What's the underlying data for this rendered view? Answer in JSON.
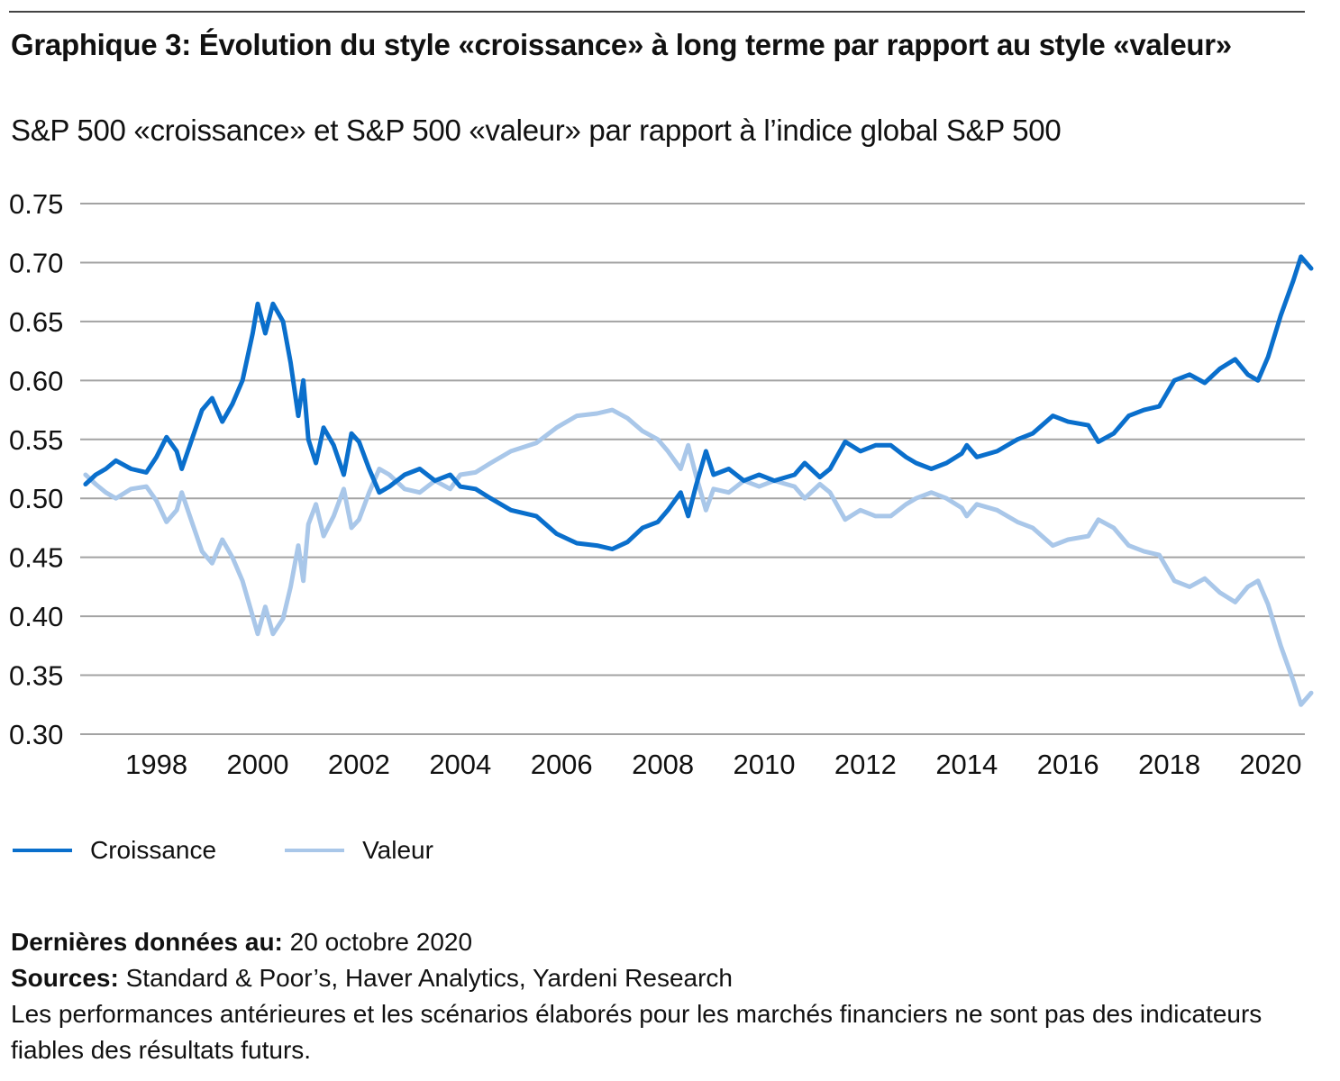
{
  "header": {
    "title": "Graphique 3: Évolution du style «croissance» à long terme par rapport au style «valeur»",
    "subtitle": "S&P 500 «croissance» et S&P 500 «valeur» par rapport à l’indice global S&P 500"
  },
  "legend": {
    "items": [
      {
        "label": "Croissance",
        "color": "#0a6fcc"
      },
      {
        "label": "Valeur",
        "color": "#a9c7e9"
      }
    ]
  },
  "footer": {
    "last_data_label": "Dernières données au:",
    "last_data_value": " 20 octobre 2020",
    "sources_label": "Sources:",
    "sources_value": " Standard & Poor’s, Haver Analytics, Yardeni Research",
    "disclaimer": "Les performances antérieures et les scénarios élaborés pour les marchés financiers ne sont pas des indicateurs fiables des résultats futurs."
  },
  "chart_data": {
    "type": "line",
    "title": "Graphique 3: Évolution du style «croissance» à long terme par rapport au style «valeur»",
    "subtitle": "S&P 500 «croissance» et S&P 500 «valeur» par rapport à l’indice global S&P 500",
    "xlabel": "",
    "ylabel": "",
    "ylim": [
      0.3,
      0.75
    ],
    "xlim": [
      1996.6,
      2020.8
    ],
    "yticks": [
      "0.75",
      "0.70",
      "0.65",
      "0.60",
      "0.55",
      "0.50",
      "0.45",
      "0.40",
      "0.35",
      "0.30"
    ],
    "xticks": [
      "1998",
      "2000",
      "2002",
      "2004",
      "2006",
      "2008",
      "2010",
      "2012",
      "2014",
      "2016",
      "2018",
      "2020"
    ],
    "grid": true,
    "legend_position": "bottom-left",
    "series": [
      {
        "name": "Croissance",
        "color": "#0a6fcc",
        "x": [
          1996.6,
          1996.8,
          1997.0,
          1997.2,
          1997.5,
          1997.8,
          1998.0,
          1998.2,
          1998.4,
          1998.5,
          1998.7,
          1998.9,
          1999.1,
          1999.3,
          1999.5,
          1999.7,
          1999.9,
          2000.0,
          2000.15,
          2000.3,
          2000.5,
          2000.65,
          2000.8,
          2000.9,
          2001.0,
          2001.15,
          2001.3,
          2001.5,
          2001.7,
          2001.85,
          2002.0,
          2002.2,
          2002.4,
          2002.6,
          2002.9,
          2003.2,
          2003.5,
          2003.8,
          2004.0,
          2004.3,
          2004.6,
          2005.0,
          2005.5,
          2005.9,
          2006.3,
          2006.7,
          2007.0,
          2007.3,
          2007.6,
          2007.9,
          2008.1,
          2008.35,
          2008.5,
          2008.65,
          2008.85,
          2009.0,
          2009.3,
          2009.6,
          2009.9,
          2010.2,
          2010.6,
          2010.8,
          2011.1,
          2011.3,
          2011.6,
          2011.9,
          2012.2,
          2012.5,
          2012.8,
          2013.0,
          2013.3,
          2013.6,
          2013.9,
          2014.0,
          2014.2,
          2014.6,
          2015.0,
          2015.3,
          2015.7,
          2016.0,
          2016.4,
          2016.6,
          2016.9,
          2017.2,
          2017.5,
          2017.8,
          2018.1,
          2018.4,
          2018.7,
          2019.0,
          2019.3,
          2019.55,
          2019.75,
          2019.95,
          2020.2,
          2020.45,
          2020.6,
          2020.8
        ],
        "values": [
          0.512,
          0.52,
          0.525,
          0.532,
          0.525,
          0.522,
          0.535,
          0.552,
          0.54,
          0.525,
          0.55,
          0.575,
          0.585,
          0.565,
          0.58,
          0.6,
          0.64,
          0.665,
          0.64,
          0.665,
          0.65,
          0.615,
          0.57,
          0.6,
          0.55,
          0.53,
          0.56,
          0.545,
          0.52,
          0.555,
          0.548,
          0.525,
          0.505,
          0.51,
          0.52,
          0.525,
          0.515,
          0.52,
          0.51,
          0.508,
          0.5,
          0.49,
          0.485,
          0.47,
          0.462,
          0.46,
          0.457,
          0.463,
          0.475,
          0.48,
          0.49,
          0.505,
          0.485,
          0.51,
          0.54,
          0.52,
          0.525,
          0.515,
          0.52,
          0.515,
          0.52,
          0.53,
          0.518,
          0.525,
          0.548,
          0.54,
          0.545,
          0.545,
          0.535,
          0.53,
          0.525,
          0.53,
          0.538,
          0.545,
          0.535,
          0.54,
          0.55,
          0.555,
          0.57,
          0.565,
          0.562,
          0.548,
          0.555,
          0.57,
          0.575,
          0.578,
          0.6,
          0.605,
          0.598,
          0.61,
          0.618,
          0.605,
          0.6,
          0.62,
          0.655,
          0.685,
          0.705,
          0.695
        ]
      },
      {
        "name": "Valeur",
        "color": "#a9c7e9",
        "x": [
          1996.6,
          1996.8,
          1997.0,
          1997.2,
          1997.5,
          1997.8,
          1998.0,
          1998.2,
          1998.4,
          1998.5,
          1998.7,
          1998.9,
          1999.1,
          1999.3,
          1999.5,
          1999.7,
          1999.9,
          2000.0,
          2000.15,
          2000.3,
          2000.5,
          2000.65,
          2000.8,
          2000.9,
          2001.0,
          2001.15,
          2001.3,
          2001.5,
          2001.7,
          2001.85,
          2002.0,
          2002.2,
          2002.4,
          2002.6,
          2002.9,
          2003.2,
          2003.5,
          2003.8,
          2004.0,
          2004.3,
          2004.6,
          2005.0,
          2005.5,
          2005.9,
          2006.3,
          2006.7,
          2007.0,
          2007.3,
          2007.6,
          2007.9,
          2008.1,
          2008.35,
          2008.5,
          2008.65,
          2008.85,
          2009.0,
          2009.3,
          2009.6,
          2009.9,
          2010.2,
          2010.6,
          2010.8,
          2011.1,
          2011.3,
          2011.6,
          2011.9,
          2012.2,
          2012.5,
          2012.8,
          2013.0,
          2013.3,
          2013.6,
          2013.9,
          2014.0,
          2014.2,
          2014.6,
          2015.0,
          2015.3,
          2015.7,
          2016.0,
          2016.4,
          2016.6,
          2016.9,
          2017.2,
          2017.5,
          2017.8,
          2018.1,
          2018.4,
          2018.7,
          2019.0,
          2019.3,
          2019.55,
          2019.75,
          2019.95,
          2020.2,
          2020.45,
          2020.6,
          2020.8
        ],
        "values": [
          0.52,
          0.512,
          0.505,
          0.5,
          0.508,
          0.51,
          0.498,
          0.48,
          0.49,
          0.505,
          0.48,
          0.455,
          0.445,
          0.465,
          0.45,
          0.43,
          0.4,
          0.385,
          0.408,
          0.385,
          0.398,
          0.425,
          0.46,
          0.43,
          0.478,
          0.495,
          0.468,
          0.485,
          0.508,
          0.475,
          0.482,
          0.505,
          0.525,
          0.52,
          0.508,
          0.505,
          0.515,
          0.508,
          0.52,
          0.522,
          0.53,
          0.54,
          0.547,
          0.56,
          0.57,
          0.572,
          0.575,
          0.568,
          0.557,
          0.55,
          0.54,
          0.525,
          0.545,
          0.52,
          0.49,
          0.508,
          0.505,
          0.515,
          0.51,
          0.515,
          0.51,
          0.5,
          0.512,
          0.505,
          0.482,
          0.49,
          0.485,
          0.485,
          0.495,
          0.5,
          0.505,
          0.5,
          0.492,
          0.485,
          0.495,
          0.49,
          0.48,
          0.475,
          0.46,
          0.465,
          0.468,
          0.482,
          0.475,
          0.46,
          0.455,
          0.452,
          0.43,
          0.425,
          0.432,
          0.42,
          0.412,
          0.425,
          0.43,
          0.41,
          0.375,
          0.345,
          0.325,
          0.335
        ]
      }
    ]
  }
}
